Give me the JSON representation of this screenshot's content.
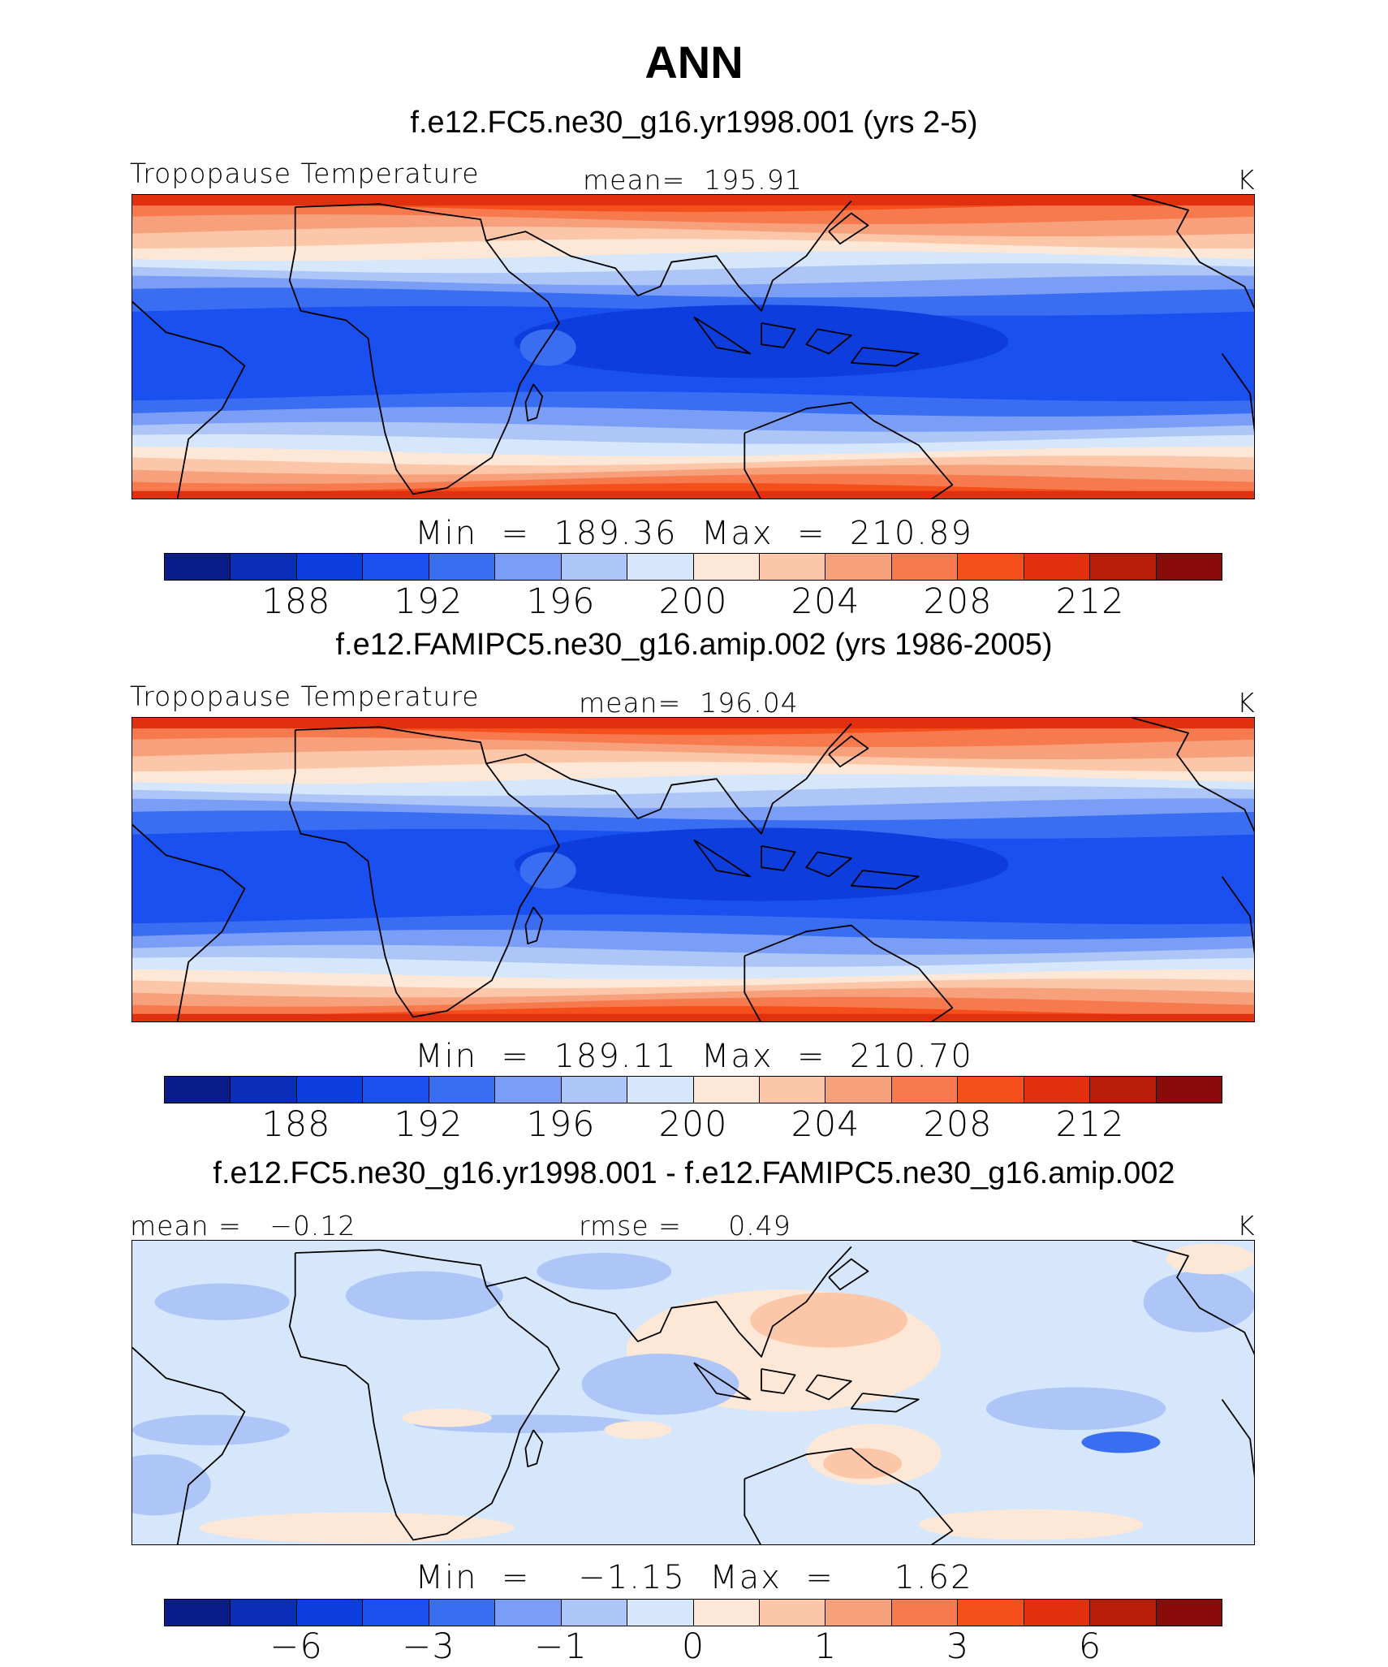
{
  "title": "ANN",
  "colors": {
    "scale": [
      "#0a1b8a",
      "#0a2eb8",
      "#0d3ddc",
      "#1a50f0",
      "#3a6ef2",
      "#7a9ef5",
      "#adc6f7",
      "#d6e6fb",
      "#fde8d8",
      "#fbc7a8",
      "#f7a07c",
      "#f77a4e",
      "#f5501c",
      "#e03010",
      "#b81c0a",
      "#880a0a"
    ],
    "coast": "#000000"
  },
  "panels": [
    {
      "subtitle": "f.e12.FC5.ne30_g16.yr1998.001 (yrs 2-5)",
      "left_label": "Tropopause Temperature",
      "center_label": "mean=  195.91",
      "right_label": "K",
      "minmax": "Min  =  189.36  Max  =  210.89",
      "ticks": [
        "188",
        "192",
        "196",
        "200",
        "204",
        "208",
        "212"
      ],
      "kind": "abs"
    },
    {
      "subtitle": "f.e12.FAMIPC5.ne30_g16.amip.002 (yrs 1986-2005)",
      "left_label": "Tropopause Temperature",
      "center_label": "mean=  196.04",
      "right_label": "K",
      "minmax": "Min  =  189.11  Max  =  210.70",
      "ticks": [
        "188",
        "192",
        "196",
        "200",
        "204",
        "208",
        "212"
      ],
      "kind": "abs"
    },
    {
      "subtitle": "f.e12.FC5.ne30_g16.yr1998.001 - f.e12.FAMIPC5.ne30_g16.amip.002",
      "left_label": "mean =   −0.12",
      "center_label": "rmse =     0.49",
      "right_label": "K",
      "minmax": "Min  =    −1.15  Max  =     1.62",
      "ticks": [
        "−6",
        "−3",
        "−1",
        "0",
        "1",
        "3",
        "6"
      ],
      "kind": "diff"
    }
  ]
}
